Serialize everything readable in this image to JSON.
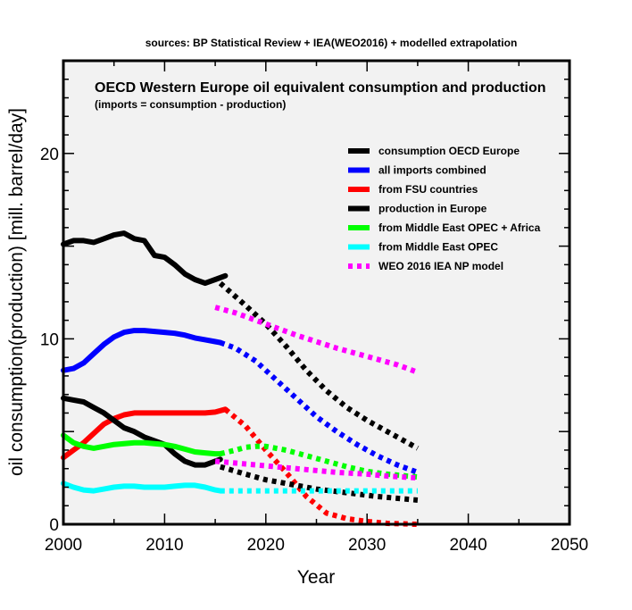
{
  "chart_data": {
    "type": "line",
    "top_caption": "sources: BP Statistical Review + IEA(WEO2016) + modelled extrapolation",
    "title": "OECD Western Europe oil equivalent consumption and production",
    "subtitle": "(imports = consumption - production)",
    "xlabel": "Year",
    "ylabel": "oil consumption(production) [mill. barrel/day]",
    "xlim": [
      2000,
      2050
    ],
    "ylim": [
      0,
      25
    ],
    "xticks": [
      2000,
      2010,
      2020,
      2030,
      2040,
      2050
    ],
    "yticks": [
      0,
      10,
      20
    ],
    "grid": false,
    "legend_position": "top-right",
    "legend": [
      {
        "label": "consumption OECD Europe",
        "color": "#000000",
        "style": "solid"
      },
      {
        "label": "all imports combined",
        "color": "#0000ff",
        "style": "solid"
      },
      {
        "label": "from FSU countries",
        "color": "#ff0000",
        "style": "solid"
      },
      {
        "label": "production in Europe",
        "color": "#000000",
        "style": "solid"
      },
      {
        "label": "from Middle East OPEC + Africa",
        "color": "#00ff00",
        "style": "solid"
      },
      {
        "label": "from Middle East OPEC",
        "color": "#00ffff",
        "style": "solid"
      },
      {
        "label": "WEO 2016 IEA NP model",
        "color": "#ff00ff",
        "style": "dotted"
      }
    ],
    "series": [
      {
        "color": "#000000",
        "style": "solid",
        "points": [
          [
            2000,
            15.1
          ],
          [
            2001,
            15.3
          ],
          [
            2002,
            15.3
          ],
          [
            2003,
            15.2
          ],
          [
            2004,
            15.4
          ],
          [
            2005,
            15.6
          ],
          [
            2006,
            15.7
          ],
          [
            2007,
            15.4
          ],
          [
            2008,
            15.3
          ],
          [
            2009,
            14.5
          ],
          [
            2010,
            14.4
          ],
          [
            2011,
            14.0
          ],
          [
            2012,
            13.5
          ],
          [
            2013,
            13.2
          ],
          [
            2014,
            13.0
          ],
          [
            2015,
            13.2
          ],
          [
            2016,
            13.4
          ]
        ]
      },
      {
        "color": "#000000",
        "style": "dotted",
        "points": [
          [
            2015.5,
            13.0
          ],
          [
            2018,
            11.8
          ],
          [
            2020,
            10.8
          ],
          [
            2022,
            9.6
          ],
          [
            2024,
            8.3
          ],
          [
            2026,
            7.2
          ],
          [
            2028,
            6.3
          ],
          [
            2030,
            5.6
          ],
          [
            2032,
            5.0
          ],
          [
            2035,
            4.1
          ]
        ]
      },
      {
        "color": "#0000ff",
        "style": "solid",
        "points": [
          [
            2000,
            8.3
          ],
          [
            2001,
            8.4
          ],
          [
            2002,
            8.7
          ],
          [
            2003,
            9.2
          ],
          [
            2004,
            9.7
          ],
          [
            2005,
            10.1
          ],
          [
            2006,
            10.35
          ],
          [
            2007,
            10.45
          ],
          [
            2008,
            10.45
          ],
          [
            2009,
            10.4
          ],
          [
            2010,
            10.35
          ],
          [
            2011,
            10.3
          ],
          [
            2012,
            10.2
          ],
          [
            2013,
            10.05
          ],
          [
            2014,
            9.95
          ],
          [
            2015,
            9.85
          ],
          [
            2015.5,
            9.8
          ]
        ]
      },
      {
        "color": "#0000ff",
        "style": "dotted",
        "points": [
          [
            2015.5,
            9.8
          ],
          [
            2017,
            9.5
          ],
          [
            2019,
            8.8
          ],
          [
            2021,
            7.8
          ],
          [
            2023,
            6.8
          ],
          [
            2025,
            5.8
          ],
          [
            2027,
            5.0
          ],
          [
            2029,
            4.3
          ],
          [
            2031,
            3.7
          ],
          [
            2033,
            3.2
          ],
          [
            2035,
            2.8
          ]
        ]
      },
      {
        "color": "#ff0000",
        "style": "solid",
        "points": [
          [
            2000,
            3.6
          ],
          [
            2001,
            4.0
          ],
          [
            2002,
            4.4
          ],
          [
            2003,
            4.9
          ],
          [
            2004,
            5.4
          ],
          [
            2005,
            5.7
          ],
          [
            2006,
            5.9
          ],
          [
            2007,
            6.0
          ],
          [
            2008,
            6.0
          ],
          [
            2010,
            6.0
          ],
          [
            2012,
            6.0
          ],
          [
            2014,
            6.0
          ],
          [
            2015,
            6.05
          ],
          [
            2016,
            6.2
          ]
        ]
      },
      {
        "color": "#ff0000",
        "style": "dotted",
        "points": [
          [
            2016,
            6.2
          ],
          [
            2018,
            5.3
          ],
          [
            2020,
            4.0
          ],
          [
            2022,
            2.8
          ],
          [
            2024,
            1.5
          ],
          [
            2026,
            0.6
          ],
          [
            2028,
            0.3
          ],
          [
            2030,
            0.15
          ],
          [
            2032,
            0.05
          ],
          [
            2035,
            0.0
          ]
        ]
      },
      {
        "color": "#000000",
        "style": "solid",
        "points": [
          [
            2000,
            6.8
          ],
          [
            2001,
            6.7
          ],
          [
            2002,
            6.6
          ],
          [
            2003,
            6.3
          ],
          [
            2004,
            6.0
          ],
          [
            2005,
            5.6
          ],
          [
            2006,
            5.2
          ],
          [
            2007,
            5.0
          ],
          [
            2008,
            4.7
          ],
          [
            2009,
            4.5
          ],
          [
            2010,
            4.3
          ],
          [
            2011,
            3.8
          ],
          [
            2012,
            3.4
          ],
          [
            2013,
            3.2
          ],
          [
            2014,
            3.2
          ],
          [
            2015,
            3.4
          ],
          [
            2015.5,
            3.5
          ]
        ]
      },
      {
        "color": "#000000",
        "style": "dotted",
        "points": [
          [
            2015.5,
            3.1
          ],
          [
            2018,
            2.7
          ],
          [
            2020,
            2.4
          ],
          [
            2022,
            2.2
          ],
          [
            2025,
            1.9
          ],
          [
            2028,
            1.7
          ],
          [
            2031,
            1.5
          ],
          [
            2035,
            1.3
          ]
        ]
      },
      {
        "color": "#00ff00",
        "style": "solid",
        "points": [
          [
            2000,
            4.8
          ],
          [
            2001,
            4.4
          ],
          [
            2002,
            4.2
          ],
          [
            2003,
            4.1
          ],
          [
            2004,
            4.2
          ],
          [
            2005,
            4.3
          ],
          [
            2006,
            4.35
          ],
          [
            2007,
            4.4
          ],
          [
            2008,
            4.4
          ],
          [
            2009,
            4.35
          ],
          [
            2010,
            4.3
          ],
          [
            2011,
            4.2
          ],
          [
            2012,
            4.05
          ],
          [
            2013,
            3.9
          ],
          [
            2014,
            3.85
          ],
          [
            2015,
            3.8
          ],
          [
            2015.5,
            3.8
          ]
        ]
      },
      {
        "color": "#00ff00",
        "style": "dotted",
        "points": [
          [
            2015.5,
            3.8
          ],
          [
            2017,
            4.0
          ],
          [
            2018,
            4.15
          ],
          [
            2019,
            4.2
          ],
          [
            2020,
            4.2
          ],
          [
            2022,
            4.0
          ],
          [
            2024,
            3.7
          ],
          [
            2026,
            3.4
          ],
          [
            2028,
            3.1
          ],
          [
            2030,
            2.85
          ],
          [
            2032,
            2.7
          ],
          [
            2035,
            2.55
          ]
        ]
      },
      {
        "color": "#00ffff",
        "style": "solid",
        "points": [
          [
            2000,
            2.2
          ],
          [
            2001,
            2.0
          ],
          [
            2002,
            1.85
          ],
          [
            2003,
            1.8
          ],
          [
            2004,
            1.9
          ],
          [
            2005,
            2.0
          ],
          [
            2006,
            2.05
          ],
          [
            2007,
            2.05
          ],
          [
            2008,
            2.0
          ],
          [
            2009,
            2.0
          ],
          [
            2010,
            2.0
          ],
          [
            2011,
            2.05
          ],
          [
            2012,
            2.1
          ],
          [
            2013,
            2.1
          ],
          [
            2014,
            2.0
          ],
          [
            2015,
            1.85
          ],
          [
            2015.5,
            1.8
          ]
        ]
      },
      {
        "color": "#00ffff",
        "style": "dotted",
        "points": [
          [
            2015.5,
            1.8
          ],
          [
            2020,
            1.8
          ],
          [
            2025,
            1.8
          ],
          [
            2030,
            1.8
          ],
          [
            2035,
            1.8
          ]
        ]
      },
      {
        "color": "#ff00ff",
        "style": "dotted",
        "points": [
          [
            2015,
            11.7
          ],
          [
            2017,
            11.4
          ],
          [
            2019,
            11.0
          ],
          [
            2021,
            10.6
          ],
          [
            2023,
            10.2
          ],
          [
            2025,
            9.85
          ],
          [
            2027,
            9.5
          ],
          [
            2029,
            9.2
          ],
          [
            2031,
            8.9
          ],
          [
            2033,
            8.6
          ],
          [
            2035,
            8.2
          ]
        ]
      },
      {
        "color": "#ff00ff",
        "style": "dotted",
        "points": [
          [
            2015,
            3.4
          ],
          [
            2018,
            3.25
          ],
          [
            2021,
            3.1
          ],
          [
            2024,
            2.95
          ],
          [
            2027,
            2.8
          ],
          [
            2030,
            2.7
          ],
          [
            2032,
            2.6
          ],
          [
            2035,
            2.5
          ]
        ]
      }
    ]
  }
}
